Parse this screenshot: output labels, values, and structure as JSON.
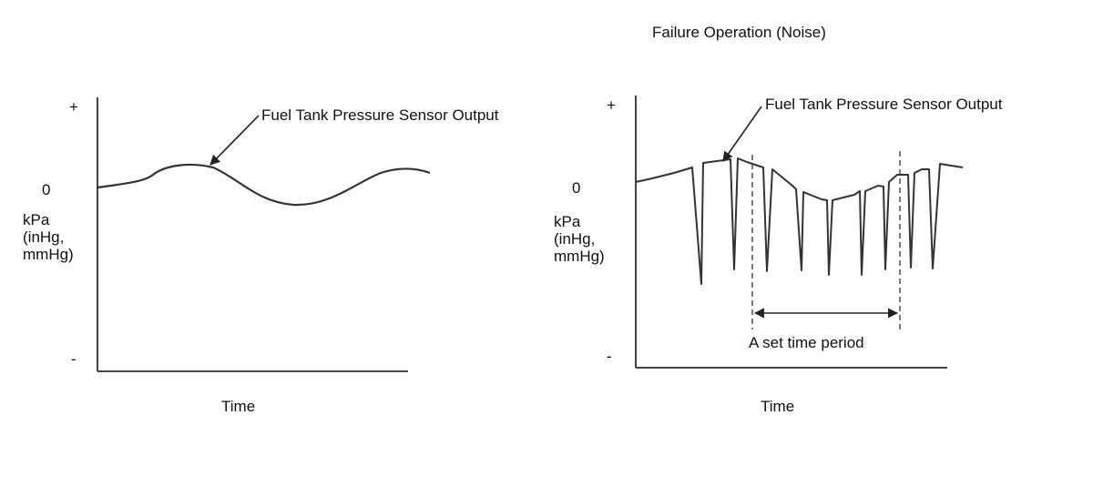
{
  "normal_graph": {
    "y_plus": "+",
    "y_zero": "0",
    "y_minus": "-",
    "y_unit": "kPa\n(inHg,\nmmHg)",
    "x_label": "Time",
    "curve_label": "Fuel Tank Pressure Sensor Output"
  },
  "failure_graph": {
    "title": "Failure Operation (Noise)",
    "y_plus": "+",
    "y_zero": "0",
    "y_minus": "-",
    "y_unit": "kPa\n(inHg,\nmmHg)",
    "x_label": "Time",
    "curve_label": "Fuel Tank Pressure Sensor Output",
    "period_label": "A set time period"
  },
  "colors": {
    "line": "#333333",
    "text": "#111111",
    "background": "#ffffff"
  }
}
